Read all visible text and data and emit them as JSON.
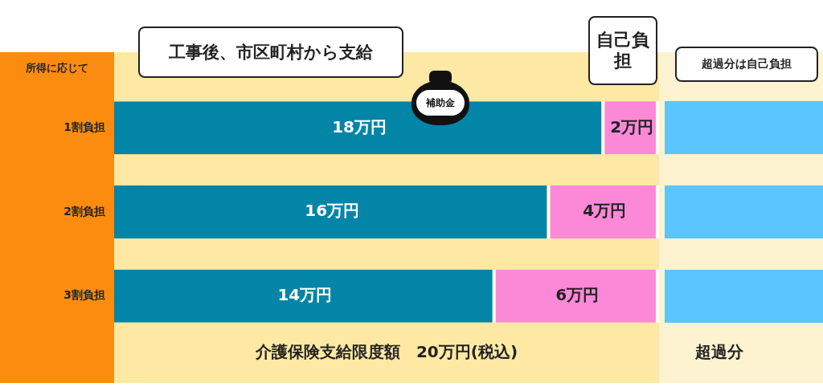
{
  "chart_data": {
    "type": "bar",
    "orientation": "horizontal",
    "stacked": true,
    "ylabel": "所得に応じて",
    "xlabel": "介護保険支給限度額　20万円(税込)",
    "categories": [
      "1割負担",
      "2割負担",
      "3割負担"
    ],
    "xlim": [
      0,
      20
    ],
    "series": [
      {
        "name": "補助金",
        "color": "#0385a7",
        "values": [
          18,
          16,
          14
        ],
        "value_labels": [
          "18万円",
          "16万円",
          "14万円"
        ]
      },
      {
        "name": "自己負担",
        "color": "#fc88d8",
        "values": [
          2,
          4,
          6
        ],
        "value_labels": [
          "2万円",
          "4万円",
          "6万円"
        ]
      }
    ],
    "annotations": [
      "工事後、市区町村から支給",
      "超過分は自己負担",
      "超過分"
    ],
    "bands": [
      {
        "axis": "x",
        "from": 0,
        "to": 20,
        "color": "#fde9a4"
      }
    ],
    "legend": false,
    "grid": false
  }
}
